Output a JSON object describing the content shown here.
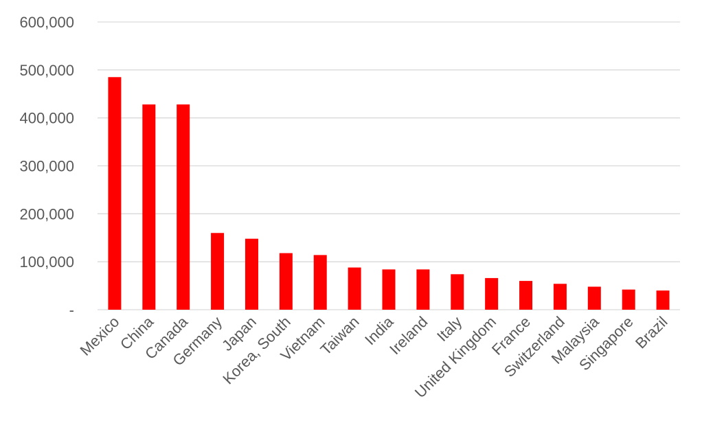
{
  "chart_data": {
    "type": "bar",
    "title": "",
    "xlabel": "",
    "ylabel": "",
    "ylim": [
      0,
      600000
    ],
    "yticks": [
      {
        "value": 0,
        "label": "-"
      },
      {
        "value": 100000,
        "label": "100,000"
      },
      {
        "value": 200000,
        "label": "200,000"
      },
      {
        "value": 300000,
        "label": "300,000"
      },
      {
        "value": 400000,
        "label": "400,000"
      },
      {
        "value": 500000,
        "label": "500,000"
      },
      {
        "value": 600000,
        "label": "600,000"
      }
    ],
    "grid": true,
    "legend": "none",
    "bar_color": "#ff0000",
    "categories": [
      "Mexico",
      "China",
      "Canada",
      "Germany",
      "Japan",
      "Korea, South",
      "Vietnam",
      "Taiwan",
      "India",
      "Ireland",
      "Italy",
      "United Kingdom",
      "France",
      "Switzerland",
      "Malaysia",
      "Singapore",
      "Brazil"
    ],
    "values": [
      485000,
      428000,
      428000,
      160000,
      148000,
      118000,
      114000,
      88000,
      84000,
      84000,
      74000,
      66000,
      60000,
      54000,
      48000,
      42000,
      40000
    ]
  }
}
